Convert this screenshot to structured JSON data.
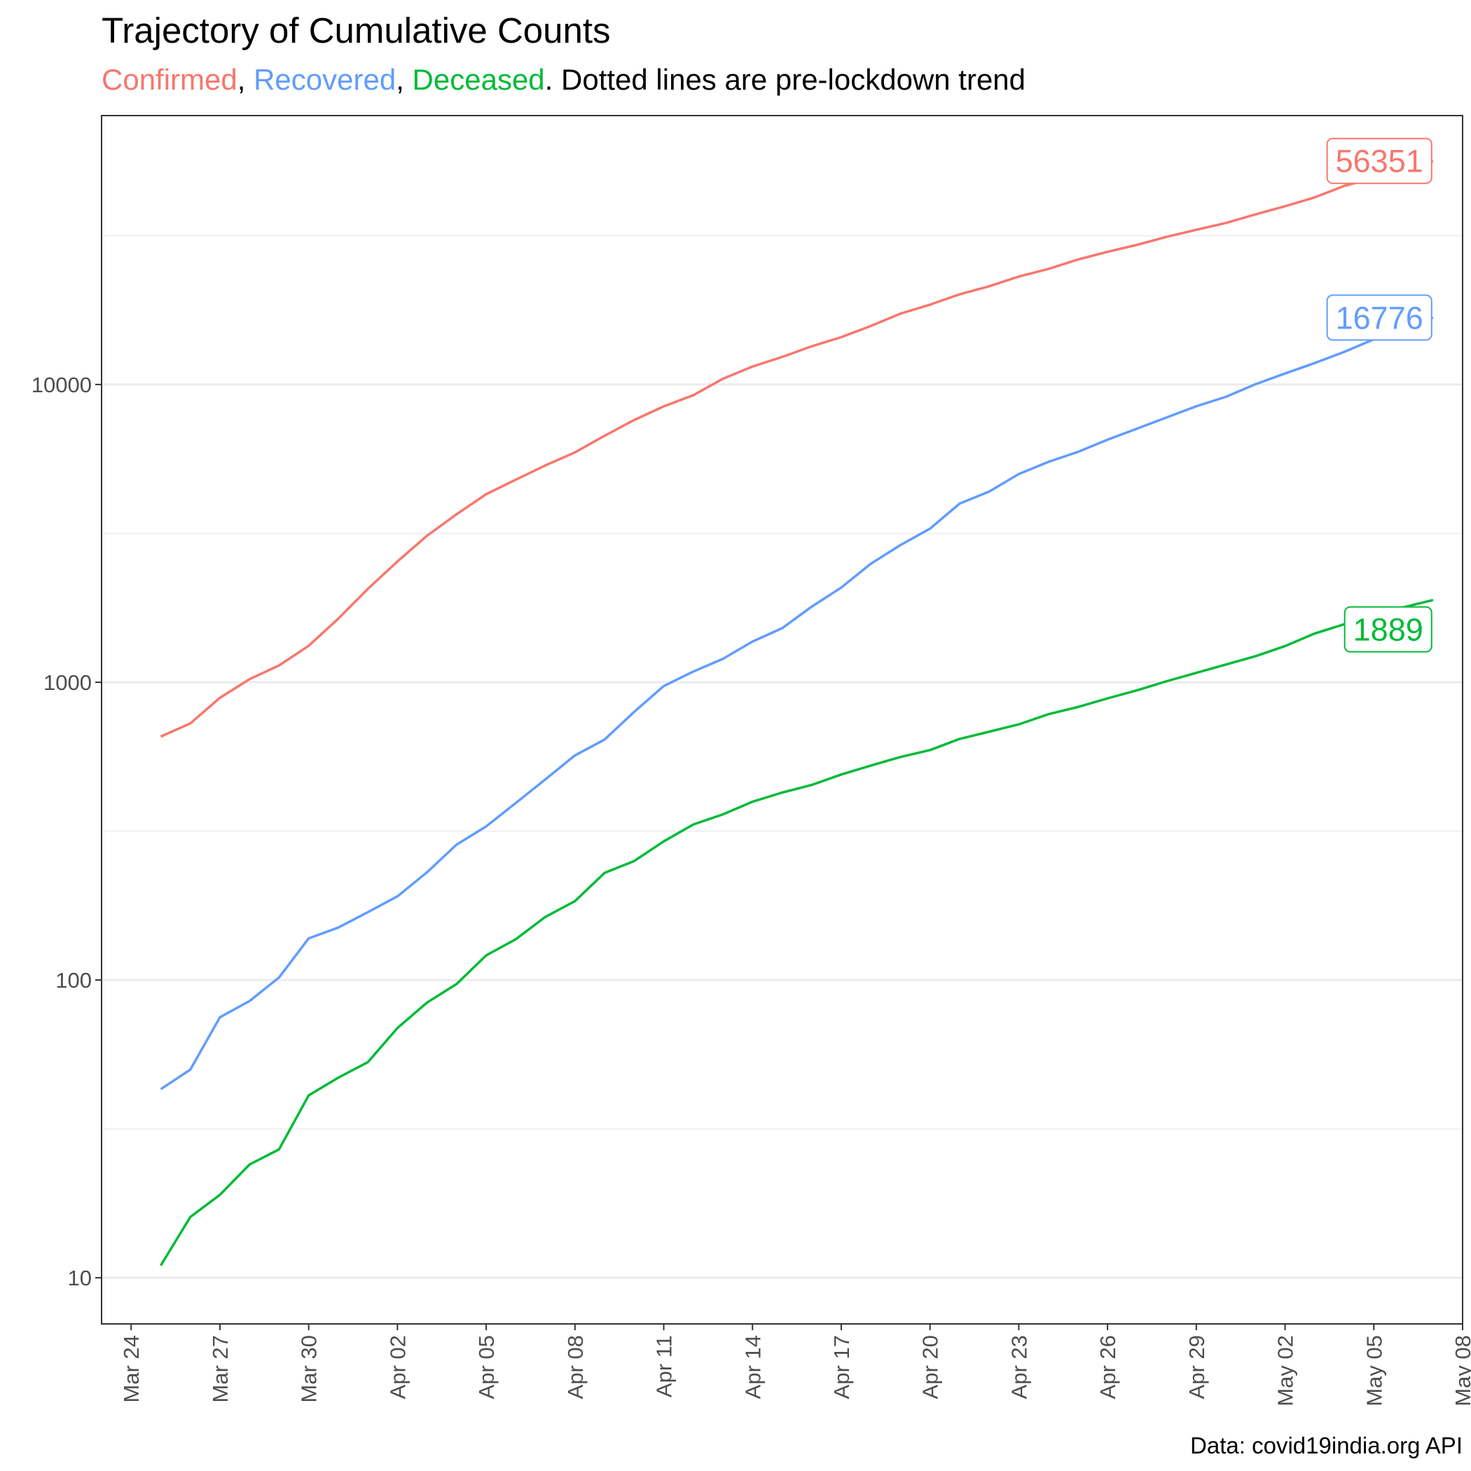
{
  "title": "Trajectory of Cumulative Counts",
  "subtitle": {
    "parts": [
      {
        "text": "Confirmed",
        "color": "#F8766D"
      },
      {
        "text": ", ",
        "color": "#000000"
      },
      {
        "text": "Recovered",
        "color": "#619CFF"
      },
      {
        "text": ", ",
        "color": "#000000"
      },
      {
        "text": "Deceased",
        "color": "#00BA38"
      },
      {
        "text": ". Dotted lines are pre-lockdown trend",
        "color": "#000000"
      }
    ]
  },
  "caption": "Data: covid19india.org API",
  "chart_data": {
    "type": "line",
    "y_scale": "log10",
    "xlim": [
      "2020-03-23",
      "2020-05-08"
    ],
    "ylim": [
      7,
      80000
    ],
    "x_ticks": [
      {
        "date": "2020-03-24",
        "label": "Mar 24"
      },
      {
        "date": "2020-03-27",
        "label": "Mar 27"
      },
      {
        "date": "2020-03-30",
        "label": "Mar 30"
      },
      {
        "date": "2020-04-02",
        "label": "Apr 02"
      },
      {
        "date": "2020-04-05",
        "label": "Apr 05"
      },
      {
        "date": "2020-04-08",
        "label": "Apr 08"
      },
      {
        "date": "2020-04-11",
        "label": "Apr 11"
      },
      {
        "date": "2020-04-14",
        "label": "Apr 14"
      },
      {
        "date": "2020-04-17",
        "label": "Apr 17"
      },
      {
        "date": "2020-04-20",
        "label": "Apr 20"
      },
      {
        "date": "2020-04-23",
        "label": "Apr 23"
      },
      {
        "date": "2020-04-26",
        "label": "Apr 26"
      },
      {
        "date": "2020-04-29",
        "label": "Apr 29"
      },
      {
        "date": "2020-05-02",
        "label": "May 02"
      },
      {
        "date": "2020-05-05",
        "label": "May 05"
      },
      {
        "date": "2020-05-08",
        "label": "May 08"
      }
    ],
    "y_ticks": [
      {
        "value": 10,
        "label": "10"
      },
      {
        "value": 100,
        "label": "100"
      },
      {
        "value": 1000,
        "label": "1000"
      },
      {
        "value": 10000,
        "label": "10000"
      }
    ],
    "y_minor_gridlines": [
      31.6,
      316,
      3160,
      31600
    ],
    "grid": "horizontal",
    "legend": "none",
    "series": [
      {
        "name": "Confirmed",
        "color": "#F8766D",
        "end_label": "56351",
        "points": [
          [
            "2020-03-25",
            657
          ],
          [
            "2020-03-26",
            727
          ],
          [
            "2020-03-27",
            887
          ],
          [
            "2020-03-28",
            1024
          ],
          [
            "2020-03-29",
            1139
          ],
          [
            "2020-03-30",
            1326
          ],
          [
            "2020-03-31",
            1635
          ],
          [
            "2020-04-01",
            2059
          ],
          [
            "2020-04-02",
            2545
          ],
          [
            "2020-04-03",
            3105
          ],
          [
            "2020-04-04",
            3667
          ],
          [
            "2020-04-05",
            4281
          ],
          [
            "2020-04-06",
            4789
          ],
          [
            "2020-04-07",
            5350
          ],
          [
            "2020-04-08",
            5916
          ],
          [
            "2020-04-09",
            6725
          ],
          [
            "2020-04-10",
            7600
          ],
          [
            "2020-04-11",
            8446
          ],
          [
            "2020-04-12",
            9205
          ],
          [
            "2020-04-13",
            10453
          ],
          [
            "2020-04-14",
            11487
          ],
          [
            "2020-04-15",
            12371
          ],
          [
            "2020-04-16",
            13432
          ],
          [
            "2020-04-17",
            14425
          ],
          [
            "2020-04-18",
            15722
          ],
          [
            "2020-04-19",
            17304
          ],
          [
            "2020-04-20",
            18539
          ],
          [
            "2020-04-21",
            20080
          ],
          [
            "2020-04-22",
            21370
          ],
          [
            "2020-04-23",
            23039
          ],
          [
            "2020-04-24",
            24447
          ],
          [
            "2020-04-25",
            26283
          ],
          [
            "2020-04-26",
            27890
          ],
          [
            "2020-04-27",
            29451
          ],
          [
            "2020-04-28",
            31324
          ],
          [
            "2020-04-29",
            33062
          ],
          [
            "2020-04-30",
            34863
          ],
          [
            "2020-05-01",
            37257
          ],
          [
            "2020-05-02",
            39699
          ],
          [
            "2020-05-03",
            42505
          ],
          [
            "2020-05-04",
            46433
          ],
          [
            "2020-05-05",
            49400
          ],
          [
            "2020-05-06",
            52987
          ],
          [
            "2020-05-07",
            56351
          ]
        ]
      },
      {
        "name": "Recovered",
        "color": "#619CFF",
        "end_label": "16776",
        "points": [
          [
            "2020-03-25",
            43
          ],
          [
            "2020-03-26",
            50
          ],
          [
            "2020-03-27",
            75
          ],
          [
            "2020-03-28",
            85
          ],
          [
            "2020-03-29",
            102
          ],
          [
            "2020-03-30",
            138
          ],
          [
            "2020-03-31",
            150
          ],
          [
            "2020-04-01",
            169
          ],
          [
            "2020-04-02",
            191
          ],
          [
            "2020-04-03",
            230
          ],
          [
            "2020-04-04",
            285
          ],
          [
            "2020-04-05",
            328
          ],
          [
            "2020-04-06",
            393
          ],
          [
            "2020-04-07",
            472
          ],
          [
            "2020-04-08",
            568
          ],
          [
            "2020-04-09",
            642
          ],
          [
            "2020-04-10",
            795
          ],
          [
            "2020-04-11",
            971
          ],
          [
            "2020-04-12",
            1086
          ],
          [
            "2020-04-13",
            1198
          ],
          [
            "2020-04-14",
            1370
          ],
          [
            "2020-04-15",
            1518
          ],
          [
            "2020-04-16",
            1794
          ],
          [
            "2020-04-17",
            2080
          ],
          [
            "2020-04-18",
            2500
          ],
          [
            "2020-04-19",
            2889
          ],
          [
            "2020-04-20",
            3279
          ],
          [
            "2020-04-21",
            3980
          ],
          [
            "2020-04-22",
            4370
          ],
          [
            "2020-04-23",
            5003
          ],
          [
            "2020-04-24",
            5496
          ],
          [
            "2020-04-25",
            5939
          ],
          [
            "2020-04-26",
            6525
          ],
          [
            "2020-04-27",
            7109
          ],
          [
            "2020-04-28",
            7752
          ],
          [
            "2020-04-29",
            8449
          ],
          [
            "2020-04-30",
            9088
          ],
          [
            "2020-05-01",
            10019
          ],
          [
            "2020-05-02",
            10887
          ],
          [
            "2020-05-03",
            11800
          ],
          [
            "2020-05-04",
            12863
          ],
          [
            "2020-05-05",
            14183
          ],
          [
            "2020-05-06",
            15333
          ],
          [
            "2020-05-07",
            16776
          ]
        ]
      },
      {
        "name": "Deceased",
        "color": "#00BA38",
        "end_label": "1889",
        "points": [
          [
            "2020-03-25",
            11
          ],
          [
            "2020-03-26",
            16
          ],
          [
            "2020-03-27",
            19
          ],
          [
            "2020-03-28",
            24
          ],
          [
            "2020-03-29",
            27
          ],
          [
            "2020-03-30",
            41
          ],
          [
            "2020-03-31",
            47
          ],
          [
            "2020-04-01",
            53
          ],
          [
            "2020-04-02",
            69
          ],
          [
            "2020-04-03",
            84
          ],
          [
            "2020-04-04",
            97
          ],
          [
            "2020-04-05",
            121
          ],
          [
            "2020-04-06",
            137
          ],
          [
            "2020-04-07",
            163
          ],
          [
            "2020-04-08",
            184
          ],
          [
            "2020-04-09",
            229
          ],
          [
            "2020-04-10",
            251
          ],
          [
            "2020-04-11",
            292
          ],
          [
            "2020-04-12",
            333
          ],
          [
            "2020-04-13",
            360
          ],
          [
            "2020-04-14",
            397
          ],
          [
            "2020-04-15",
            426
          ],
          [
            "2020-04-16",
            452
          ],
          [
            "2020-04-17",
            490
          ],
          [
            "2020-04-18",
            525
          ],
          [
            "2020-04-19",
            561
          ],
          [
            "2020-04-20",
            592
          ],
          [
            "2020-04-21",
            645
          ],
          [
            "2020-04-22",
            682
          ],
          [
            "2020-04-23",
            722
          ],
          [
            "2020-04-24",
            781
          ],
          [
            "2020-04-25",
            826
          ],
          [
            "2020-04-26",
            883
          ],
          [
            "2020-04-27",
            940
          ],
          [
            "2020-04-28",
            1008
          ],
          [
            "2020-04-29",
            1075
          ],
          [
            "2020-04-30",
            1147
          ],
          [
            "2020-05-01",
            1223
          ],
          [
            "2020-05-02",
            1323
          ],
          [
            "2020-05-03",
            1458
          ],
          [
            "2020-05-04",
            1566
          ],
          [
            "2020-05-05",
            1693
          ],
          [
            "2020-05-06",
            1785
          ],
          [
            "2020-05-07",
            1889
          ]
        ]
      }
    ]
  }
}
